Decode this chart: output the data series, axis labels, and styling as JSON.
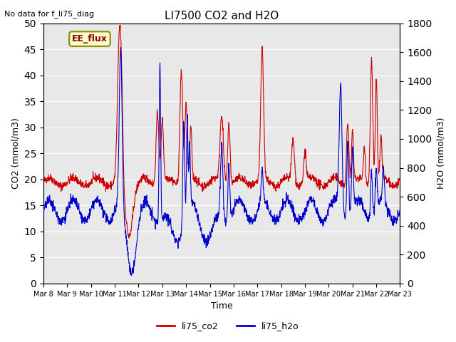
{
  "title": "LI7500 CO2 and H2O",
  "subtitle": "No data for f_li75_diag",
  "xlabel": "Time",
  "ylabel_left": "CO2 (mmol/m3)",
  "ylabel_right": "H2O (mmol/m3)",
  "ylim_left": [
    0,
    50
  ],
  "ylim_right": [
    0,
    1800
  ],
  "yticks_left": [
    0,
    5,
    10,
    15,
    20,
    25,
    30,
    35,
    40,
    45,
    50
  ],
  "yticks_right": [
    0,
    200,
    400,
    600,
    800,
    1000,
    1200,
    1400,
    1600,
    1800
  ],
  "x_tick_labels": [
    "Mar 8",
    "Mar 9",
    "Mar 10",
    "Mar 11",
    "Mar 12",
    "Mar 13",
    "Mar 14",
    "Mar 15",
    "Mar 16",
    "Mar 17",
    "Mar 18",
    "Mar 19",
    "Mar 20",
    "Mar 21",
    "Mar 22",
    "Mar 23"
  ],
  "co2_color": "#CC0000",
  "h2o_color": "#0000CC",
  "legend_label_co2": "li75_co2",
  "legend_label_h2o": "li75_h2o",
  "annotation_text": "EE_flux",
  "bg_color": "#E8E8E8",
  "fig_bg_color": "#FFFFFF",
  "n_points": 1500
}
